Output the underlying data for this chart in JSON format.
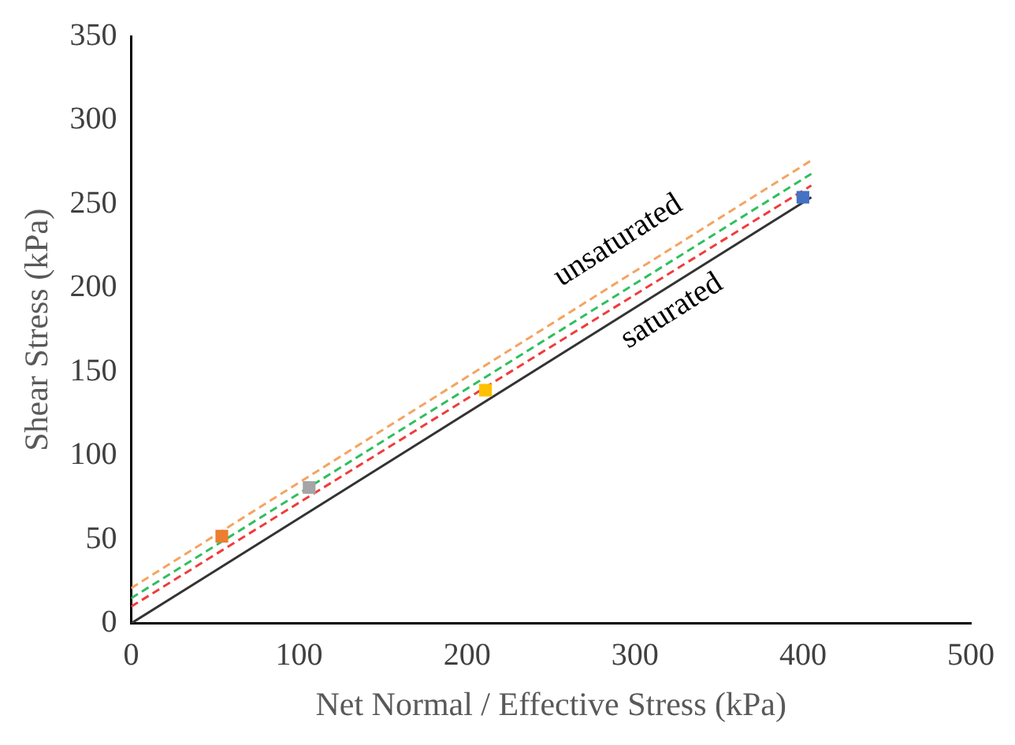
{
  "chart_data": {
    "type": "line",
    "xlabel": "Net Normal / Effective Stress (kPa)",
    "ylabel": "Shear Stress (kPa)",
    "xlim": [
      0,
      500
    ],
    "xticks": [
      0,
      100,
      200,
      300,
      400,
      500
    ],
    "ylim": [
      0,
      350
    ],
    "yticks": [
      0,
      50,
      100,
      150,
      200,
      250,
      300,
      350
    ],
    "grid": false,
    "legend": false,
    "annotations": [
      "unsaturated",
      "saturated"
    ],
    "series": [
      {
        "x": [
          0,
          405
        ],
        "values": [
          21,
          276
        ],
        "color": "#f4a460",
        "line_style": "dashed",
        "marker": "none"
      },
      {
        "x": [
          0,
          405
        ],
        "values": [
          15,
          268
        ],
        "color": "#2fbf5f",
        "line_style": "dashed",
        "marker": "none"
      },
      {
        "x": [
          0,
          405
        ],
        "values": [
          10,
          261
        ],
        "color": "#f03c3c",
        "line_style": "dashed",
        "marker": "none"
      },
      {
        "x": [
          0,
          405
        ],
        "values": [
          0,
          254
        ],
        "color": "#333333",
        "line_style": "solid",
        "marker": "none"
      },
      {
        "type": "scatter",
        "x": [
          54,
          106,
          211,
          400
        ],
        "values": [
          52,
          81,
          139,
          254
        ],
        "colors": [
          "#ed7d31",
          "#a5a5a5",
          "#ffc000",
          "#4472c4"
        ],
        "marker": "square"
      }
    ]
  }
}
